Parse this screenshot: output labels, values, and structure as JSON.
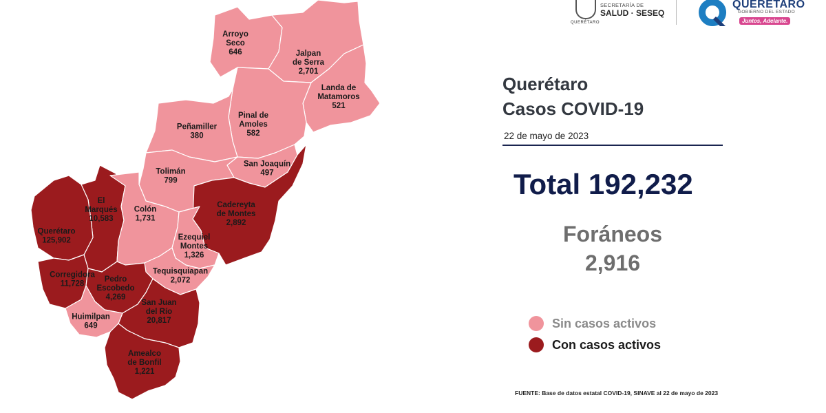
{
  "header": {
    "salud_small": "SECRETARÍA DE",
    "salud_main": "SALUD · SESEQ",
    "seal_caption": "QUERÉTARO",
    "state_name": "QUERÉTARO",
    "state_sub": "GOBIERNO DEL ESTADO",
    "slogan": "Juntos, Adelante."
  },
  "title_line1": "Querétaro",
  "title_line2": "Casos COVID-19",
  "date": "22 de mayo de 2023",
  "total": "Total 192,232",
  "foraneos_label": "Foráneos",
  "foraneos_value": "2,916",
  "legend": {
    "sin": {
      "label": "Sin casos activos",
      "color": "#f0949c"
    },
    "con": {
      "label": "Con casos activos",
      "color": "#9b1b1e"
    }
  },
  "source": "FUENTE: Base de datos estatal COVID-19, SINAVE al 22 de mayo de 2023",
  "municipalities": [
    {
      "key": "arroyo-seco",
      "name_lines": [
        "Arroyo",
        "Seco"
      ],
      "cases": "646",
      "status": "sin"
    },
    {
      "key": "jalpan",
      "name_lines": [
        "Jalpan",
        "de Serra"
      ],
      "cases": "2,701",
      "status": "sin"
    },
    {
      "key": "landa",
      "name_lines": [
        "Landa de",
        "Matamoros"
      ],
      "cases": "521",
      "status": "sin"
    },
    {
      "key": "pinal",
      "name_lines": [
        "Pinal de",
        "Amoles"
      ],
      "cases": "582",
      "status": "sin"
    },
    {
      "key": "penamiller",
      "name_lines": [
        "Peñamiller"
      ],
      "cases": "380",
      "status": "sin"
    },
    {
      "key": "san-joaquin",
      "name_lines": [
        "San Joaquín"
      ],
      "cases": "497",
      "status": "sin"
    },
    {
      "key": "toliman",
      "name_lines": [
        "Tolimán"
      ],
      "cases": "799",
      "status": "sin"
    },
    {
      "key": "cadereyta",
      "name_lines": [
        "Cadereyta",
        "de Montes"
      ],
      "cases": "2,892",
      "status": "con"
    },
    {
      "key": "el-marques",
      "name_lines": [
        "El",
        "Marqués"
      ],
      "cases": "10,583",
      "status": "con"
    },
    {
      "key": "colon",
      "name_lines": [
        "Colón"
      ],
      "cases": "1,731",
      "status": "sin"
    },
    {
      "key": "queretaro",
      "name_lines": [
        "Querétaro"
      ],
      "cases": "125,902",
      "status": "con"
    },
    {
      "key": "ezequiel-montes",
      "name_lines": [
        "Ezequiel",
        "Montes"
      ],
      "cases": "1,326",
      "status": "sin"
    },
    {
      "key": "tequisquiapan",
      "name_lines": [
        "Tequisquiapan"
      ],
      "cases": "2,072",
      "status": "sin"
    },
    {
      "key": "corregidora",
      "name_lines": [
        "Corregidora"
      ],
      "cases": "11,728",
      "status": "con"
    },
    {
      "key": "pedro-escobedo",
      "name_lines": [
        "Pedro",
        "Escobedo"
      ],
      "cases": "4,269",
      "status": "con"
    },
    {
      "key": "san-juan-del-rio",
      "name_lines": [
        "San Juan",
        "del Río"
      ],
      "cases": "20,817",
      "status": "con"
    },
    {
      "key": "huimilpan",
      "name_lines": [
        "Huimilpan"
      ],
      "cases": "649",
      "status": "sin"
    },
    {
      "key": "amealco",
      "name_lines": [
        "Amealco",
        "de Bonfil"
      ],
      "cases": "1,221",
      "status": "con"
    }
  ]
}
